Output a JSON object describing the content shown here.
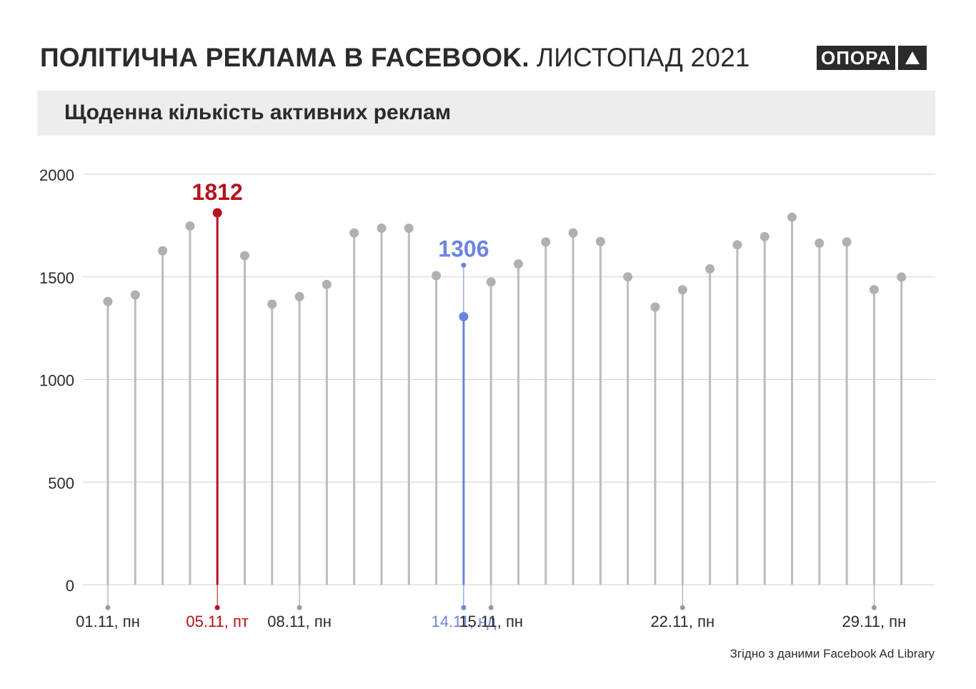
{
  "header": {
    "title_bold": "ПОЛІТИЧНА РЕКЛАМА В FACEBOOK.",
    "title_light": "ЛИСТОПАД 2021",
    "logo_text": "ОПОРА"
  },
  "subtitle": "Щоденна кількість активних реклам",
  "source": "Згідно з даними Facebook Ad Library",
  "colors": {
    "stem": "#bcbcbc",
    "dot": "#b0b0b0",
    "grid": "#d2d2d2",
    "highlight_max": "#b5121b",
    "highlight_min": "#6b84e0",
    "text": "#2b2b2b"
  },
  "chart_data": {
    "type": "lollipop",
    "title": "Щоденна кількість активних реклам",
    "ylim": [
      0,
      2000
    ],
    "yticks": [
      0,
      500,
      1000,
      1500,
      2000
    ],
    "grid": true,
    "days": [
      1,
      2,
      3,
      4,
      5,
      6,
      7,
      8,
      9,
      10,
      11,
      12,
      13,
      14,
      15,
      16,
      17,
      18,
      19,
      20,
      21,
      22,
      23,
      24,
      25,
      26,
      27,
      28,
      29,
      30
    ],
    "values": [
      1380,
      1412,
      1627,
      1748,
      1812,
      1603,
      1367,
      1404,
      1463,
      1714,
      1737,
      1737,
      1506,
      1306,
      1475,
      1563,
      1670,
      1714,
      1672,
      1500,
      1353,
      1437,
      1539,
      1656,
      1696,
      1791,
      1664,
      1670,
      1438,
      1499
    ],
    "xticks": [
      {
        "day": 1,
        "label": "01.11, пн",
        "style": "normal"
      },
      {
        "day": 5,
        "label": "05.11, пт",
        "style": "max"
      },
      {
        "day": 8,
        "label": "08.11, пн",
        "style": "normal"
      },
      {
        "day": 14,
        "label": "14.11, нд",
        "style": "min"
      },
      {
        "day": 15,
        "label": "15.11, пн",
        "style": "normal"
      },
      {
        "day": 22,
        "label": "22.11, пн",
        "style": "normal"
      },
      {
        "day": 29,
        "label": "29.11, пн",
        "style": "normal"
      }
    ],
    "highlights": {
      "max": {
        "day": 5,
        "value": 1812,
        "label": "1812"
      },
      "min": {
        "day": 14,
        "value": 1306,
        "label": "1306"
      }
    }
  }
}
